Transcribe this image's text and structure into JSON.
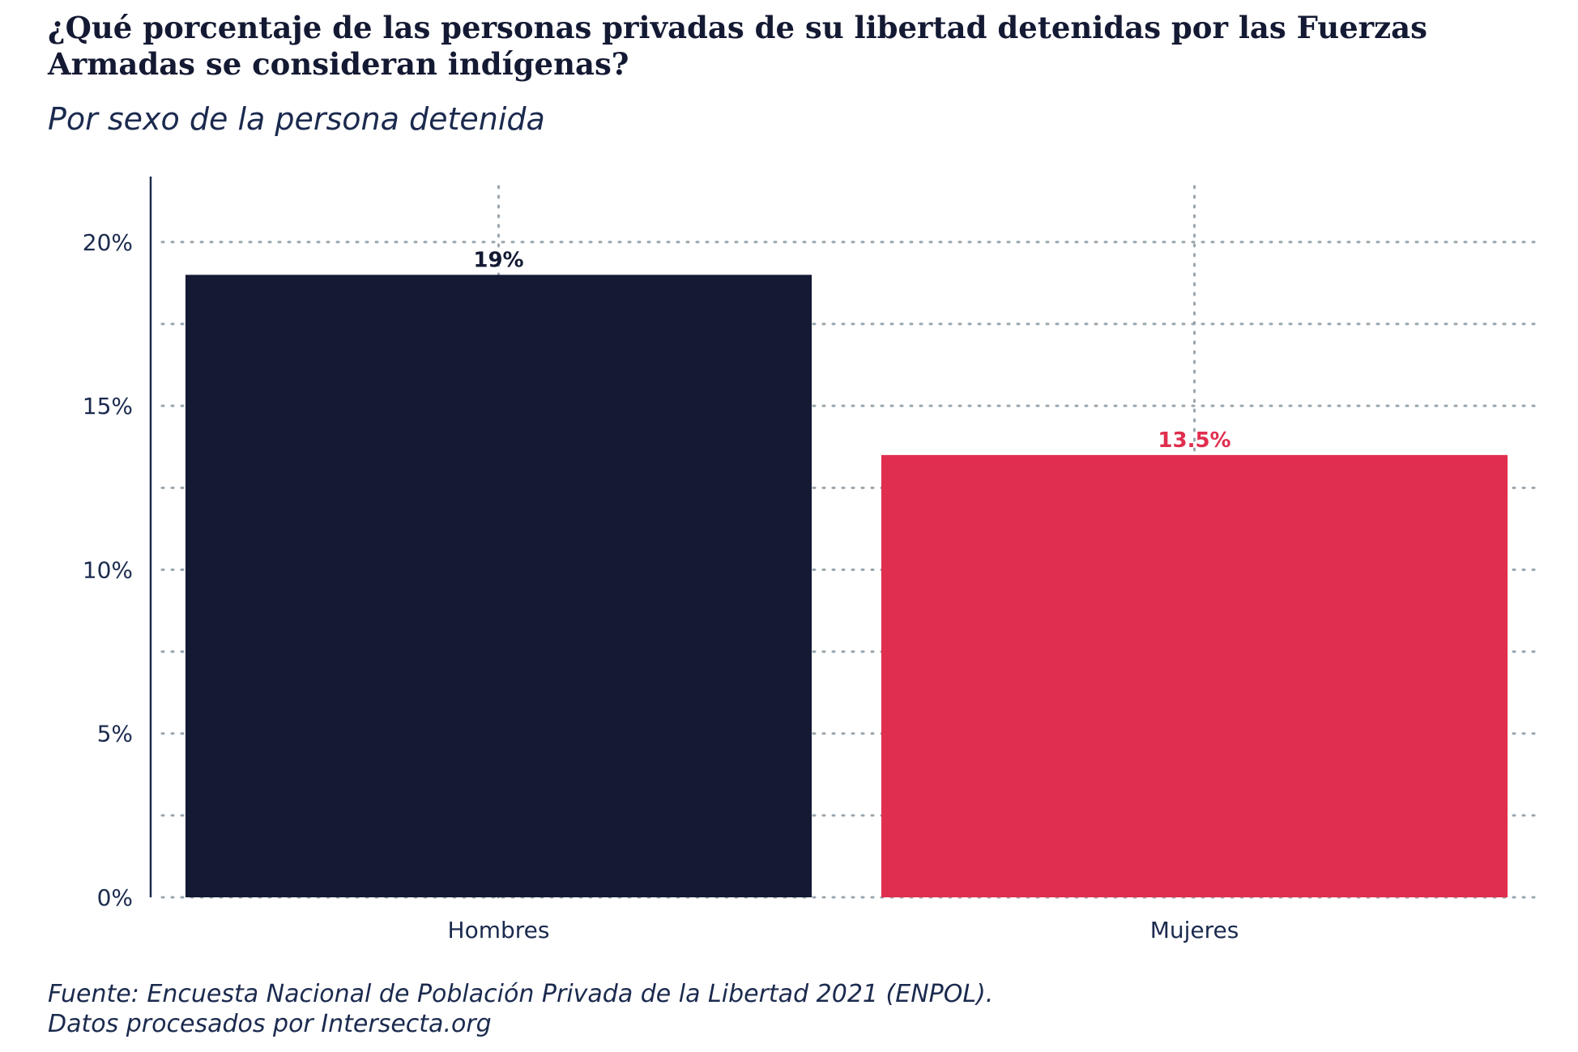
{
  "title": "¿Qué porcentaje de las personas privadas de su libertad detenidas por las Fuerzas Armadas se consideran indígenas?",
  "subtitle": "Por sexo de la persona detenida",
  "caption": {
    "line1": "Fuente: Encuesta Nacional de Población Privada de la Libertad 2021 (ENPOL).",
    "line2": "Datos procesados por Intersecta.org"
  },
  "chart_data": {
    "type": "bar",
    "categories": [
      "Hombres",
      "Mujeres"
    ],
    "values": [
      19,
      13.5
    ],
    "data_labels": [
      "19%",
      "13.5%"
    ],
    "bar_colors": [
      "#141a33",
      "#e02e4f"
    ],
    "label_colors": [
      "#141a33",
      "#e02e4f"
    ],
    "ylim": [
      0,
      22
    ],
    "yticks": [
      0,
      5,
      10,
      15,
      20
    ],
    "ytick_labels": [
      "0%",
      "5%",
      "10%",
      "15%",
      "20%"
    ],
    "minor_yticks": [
      2.5,
      7.5,
      12.5,
      17.5
    ],
    "grid": true,
    "xlabel": "",
    "ylabel": ""
  }
}
